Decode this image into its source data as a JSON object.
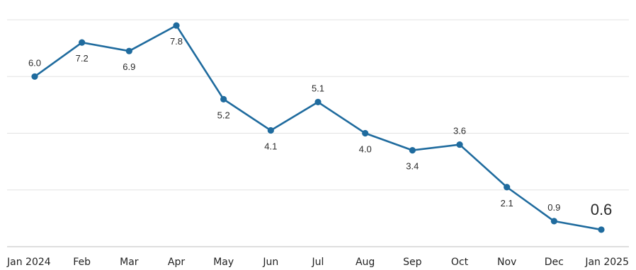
{
  "chart_data": {
    "type": "line",
    "title": "",
    "xlabel": "",
    "ylabel": "",
    "categories": [
      "Jan 2024",
      "Feb",
      "Mar",
      "Apr",
      "May",
      "Jun",
      "Jul",
      "Aug",
      "Sep",
      "Oct",
      "Nov",
      "Dec",
      "Jan 2025"
    ],
    "series": [
      {
        "values": [
          6.0,
          7.2,
          6.9,
          7.8,
          5.2,
          4.1,
          5.1,
          4.0,
          3.4,
          3.6,
          2.1,
          0.9,
          0.6
        ]
      }
    ],
    "data_labels": [
      "6.0",
      "7.2",
      "6.9",
      "7.8",
      "5.2",
      "4.1",
      "5.1",
      "4.0",
      "3.4",
      "3.6",
      "2.1",
      "0.9",
      "0.6"
    ],
    "ylim": [
      0,
      8.5
    ],
    "grid": "horizontal",
    "y_tick_labels_shown": false,
    "legend": "none",
    "colors": {
      "line": "#1f6b9e",
      "highlight_label": "#d9302c"
    }
  }
}
